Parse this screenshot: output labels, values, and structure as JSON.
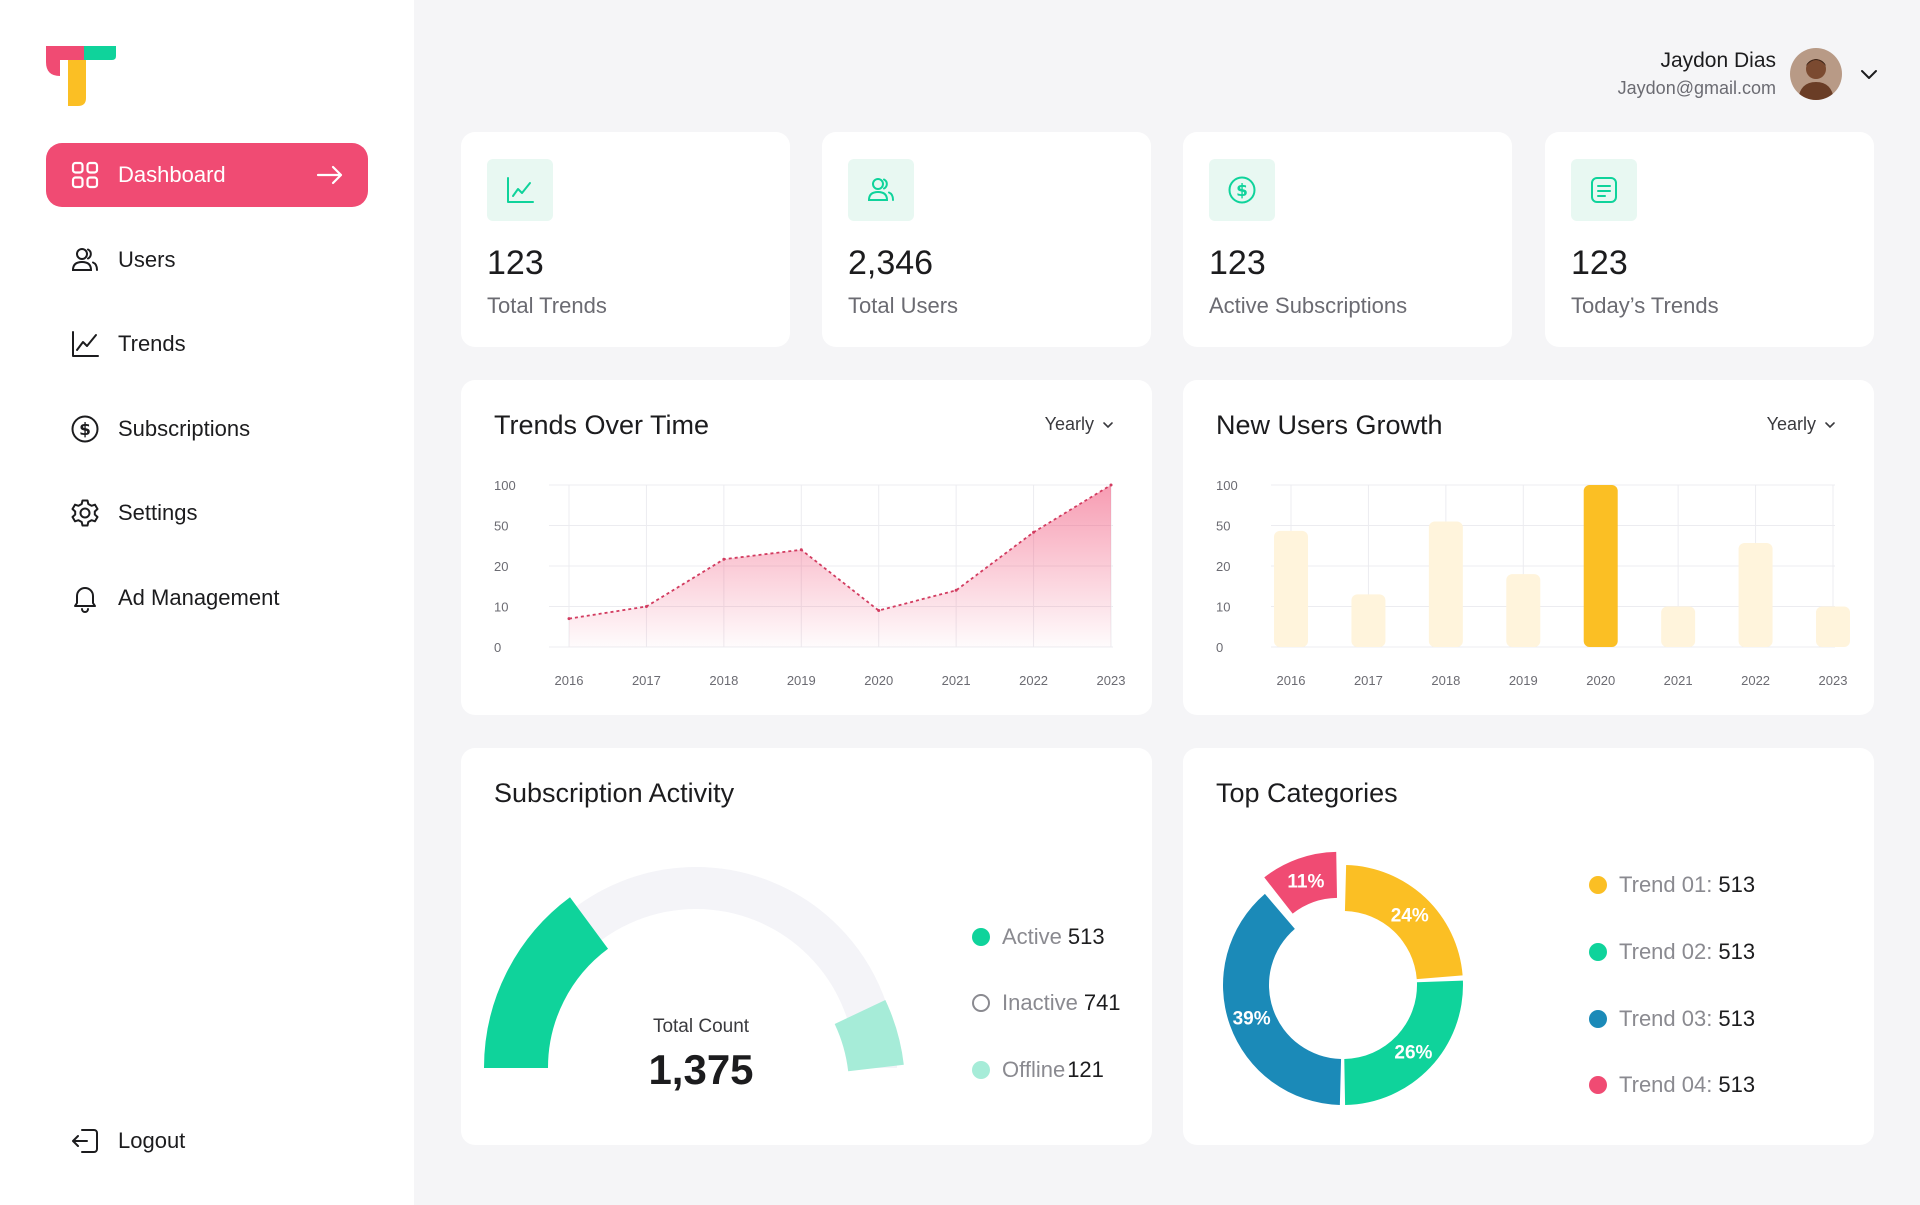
{
  "sidebar": {
    "items": [
      {
        "label": "Dashboard",
        "icon": "dashboard-grid-icon",
        "active": true
      },
      {
        "label": "Users",
        "icon": "users-icon"
      },
      {
        "label": "Trends",
        "icon": "trend-line-icon"
      },
      {
        "label": "Subscriptions",
        "icon": "dollar-circle-icon"
      },
      {
        "label": "Settings",
        "icon": "gear-icon"
      },
      {
        "label": "Ad Management",
        "icon": "bell-icon"
      }
    ],
    "logout_label": "Logout"
  },
  "user": {
    "name": "Jaydon Dias",
    "email": "Jaydon@gmail.com"
  },
  "stats": [
    {
      "value": "123",
      "label": "Total Trends",
      "icon": "trend-chart-icon"
    },
    {
      "value": "2,346",
      "label": "Total Users",
      "icon": "users-icon"
    },
    {
      "value": "123",
      "label": "Active Subscriptions",
      "icon": "dollar-circle-icon"
    },
    {
      "value": "123",
      "label": "Today’s Trends",
      "icon": "note-icon"
    }
  ],
  "colors": {
    "accent": "#f04b73",
    "green": "#0fd39b",
    "yellow": "#fbbf24",
    "blue": "#1b8ab8",
    "mint": "#a6ecd8"
  },
  "trends_panel": {
    "title": "Trends Over Time",
    "period": "Yearly"
  },
  "growth_panel": {
    "title": "New Users Growth",
    "period": "Yearly"
  },
  "subscription_panel": {
    "title": "Subscription Activity",
    "total_label": "Total Count",
    "total_value": "1,375",
    "legend": [
      {
        "name": "Active",
        "value": "513"
      },
      {
        "name": "Inactive",
        "value": "741"
      },
      {
        "name": "Offline",
        "value": "121"
      }
    ]
  },
  "categories_panel": {
    "title": "Top Categories",
    "legend": [
      {
        "name": "Trend 01:",
        "value": "513"
      },
      {
        "name": "Trend 02:",
        "value": "513"
      },
      {
        "name": "Trend 03:",
        "value": "513"
      },
      {
        "name": "Trend 04:",
        "value": "513"
      }
    ]
  },
  "chart_data": [
    {
      "type": "area",
      "title": "Trends Over Time",
      "x": [
        "2016",
        "2017",
        "2018",
        "2019",
        "2020",
        "2021",
        "2022",
        "2023"
      ],
      "y_ticks": [
        "100",
        "50",
        "20",
        "10",
        "0"
      ],
      "values": [
        7,
        10,
        25,
        32,
        9,
        14,
        45,
        100
      ],
      "color": "#f04b73"
    },
    {
      "type": "bar",
      "title": "New Users Growth",
      "categories": [
        "2016",
        "2017",
        "2018",
        "2019",
        "2020",
        "2021",
        "2022",
        "2023"
      ],
      "y_ticks": [
        "100",
        "50",
        "20",
        "10",
        "0"
      ],
      "values": [
        46,
        13,
        55,
        18,
        100,
        10,
        37,
        10
      ],
      "highlight_index": 4,
      "color": "#fbbf24",
      "muted_color": "#fff4dc"
    },
    {
      "type": "pie",
      "title": "Top Categories",
      "labels": [
        "Trend 01",
        "Trend 02",
        "Trend 03",
        "Trend 04"
      ],
      "values": [
        24,
        26,
        39,
        11
      ],
      "percent_labels": [
        "24%",
        "26%",
        "39%",
        "11%"
      ]
    }
  ]
}
